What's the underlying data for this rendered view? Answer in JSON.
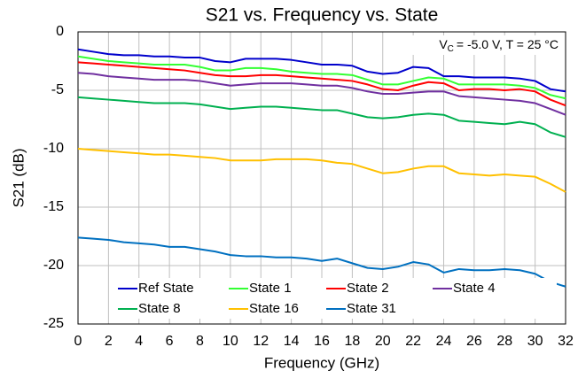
{
  "chart_data": {
    "type": "line",
    "title": "S21 vs. Frequency vs. State",
    "xlabel": "Frequency (GHz)",
    "ylabel": "S21 (dB)",
    "annotation": {
      "symbol": "V",
      "subscript": "C",
      "text": "= -5.0 V, T = 25 °C"
    },
    "x": [
      0,
      1,
      2,
      3,
      4,
      5,
      6,
      7,
      8,
      9,
      10,
      11,
      12,
      13,
      14,
      15,
      16,
      17,
      18,
      19,
      20,
      21,
      22,
      23,
      24,
      25,
      26,
      27,
      28,
      29,
      30,
      31,
      32
    ],
    "series": [
      {
        "name": "Ref State",
        "color": "#0000cc",
        "values": [
          -1.5,
          -1.7,
          -1.9,
          -2.0,
          -2.0,
          -2.1,
          -2.1,
          -2.2,
          -2.2,
          -2.5,
          -2.6,
          -2.3,
          -2.3,
          -2.3,
          -2.4,
          -2.6,
          -2.8,
          -2.8,
          -2.9,
          -3.4,
          -3.6,
          -3.5,
          -3.0,
          -3.1,
          -3.8,
          -3.8,
          -3.9,
          -3.9,
          -3.9,
          -4.0,
          -4.2,
          -4.9,
          -5.1
        ]
      },
      {
        "name": "State 1",
        "color": "#33ff33",
        "values": [
          -2.1,
          -2.3,
          -2.5,
          -2.6,
          -2.7,
          -2.8,
          -2.8,
          -2.8,
          -3.0,
          -3.3,
          -3.3,
          -3.1,
          -3.1,
          -3.2,
          -3.4,
          -3.5,
          -3.6,
          -3.6,
          -3.7,
          -4.1,
          -4.5,
          -4.5,
          -4.2,
          -3.9,
          -4.0,
          -4.5,
          -4.5,
          -4.5,
          -4.5,
          -4.6,
          -4.8,
          -5.4,
          -5.7
        ]
      },
      {
        "name": "State 2",
        "color": "#ff0000",
        "values": [
          -2.6,
          -2.7,
          -2.8,
          -2.9,
          -3.0,
          -3.1,
          -3.2,
          -3.3,
          -3.5,
          -3.7,
          -3.8,
          -3.8,
          -3.7,
          -3.7,
          -3.8,
          -3.9,
          -4.0,
          -4.1,
          -4.2,
          -4.5,
          -4.9,
          -5.0,
          -4.6,
          -4.3,
          -4.4,
          -5.0,
          -4.9,
          -4.9,
          -5.0,
          -4.9,
          -5.1,
          -5.8,
          -6.3
        ]
      },
      {
        "name": "State 4",
        "color": "#7030a0",
        "values": [
          -3.5,
          -3.6,
          -3.8,
          -3.9,
          -4.0,
          -4.1,
          -4.1,
          -4.1,
          -4.2,
          -4.4,
          -4.6,
          -4.5,
          -4.4,
          -4.4,
          -4.4,
          -4.5,
          -4.6,
          -4.6,
          -4.8,
          -5.1,
          -5.3,
          -5.3,
          -5.2,
          -5.1,
          -5.1,
          -5.5,
          -5.6,
          -5.7,
          -5.8,
          -5.9,
          -6.1,
          -6.6,
          -7.1
        ]
      },
      {
        "name": "State 8",
        "color": "#00b050",
        "values": [
          -5.6,
          -5.7,
          -5.8,
          -5.9,
          -6.0,
          -6.1,
          -6.1,
          -6.1,
          -6.2,
          -6.4,
          -6.6,
          -6.5,
          -6.4,
          -6.4,
          -6.5,
          -6.6,
          -6.7,
          -6.7,
          -7.0,
          -7.3,
          -7.4,
          -7.3,
          -7.1,
          -7.0,
          -7.1,
          -7.6,
          -7.7,
          -7.8,
          -7.9,
          -7.7,
          -7.9,
          -8.6,
          -9.0
        ]
      },
      {
        "name": "State 16",
        "color": "#ffc000",
        "values": [
          -10.0,
          -10.1,
          -10.2,
          -10.3,
          -10.4,
          -10.5,
          -10.5,
          -10.6,
          -10.7,
          -10.8,
          -11.0,
          -11.0,
          -11.0,
          -10.9,
          -10.9,
          -10.9,
          -11.0,
          -11.2,
          -11.3,
          -11.7,
          -12.1,
          -12.0,
          -11.7,
          -11.5,
          -11.5,
          -12.1,
          -12.2,
          -12.3,
          -12.2,
          -12.3,
          -12.4,
          -13.0,
          -13.7
        ]
      },
      {
        "name": "State 31",
        "color": "#0070c0",
        "values": [
          -17.6,
          -17.7,
          -17.8,
          -18.0,
          -18.1,
          -18.2,
          -18.4,
          -18.4,
          -18.6,
          -18.8,
          -19.1,
          -19.2,
          -19.2,
          -19.3,
          -19.3,
          -19.4,
          -19.6,
          -19.4,
          -19.8,
          -20.2,
          -20.3,
          -20.1,
          -19.7,
          -19.9,
          -20.6,
          -20.3,
          -20.4,
          -20.4,
          -20.3,
          -20.4,
          -20.7,
          -21.4,
          -21.8
        ]
      }
    ],
    "xlim": [
      0,
      32
    ],
    "xticks": [
      0,
      2,
      4,
      6,
      8,
      10,
      12,
      14,
      16,
      18,
      20,
      22,
      24,
      26,
      28,
      30,
      32
    ],
    "ylim": [
      -25,
      0
    ],
    "yticks": [
      0,
      -5,
      -10,
      -15,
      -20,
      -25
    ],
    "grid": true,
    "legend": "lower center"
  }
}
